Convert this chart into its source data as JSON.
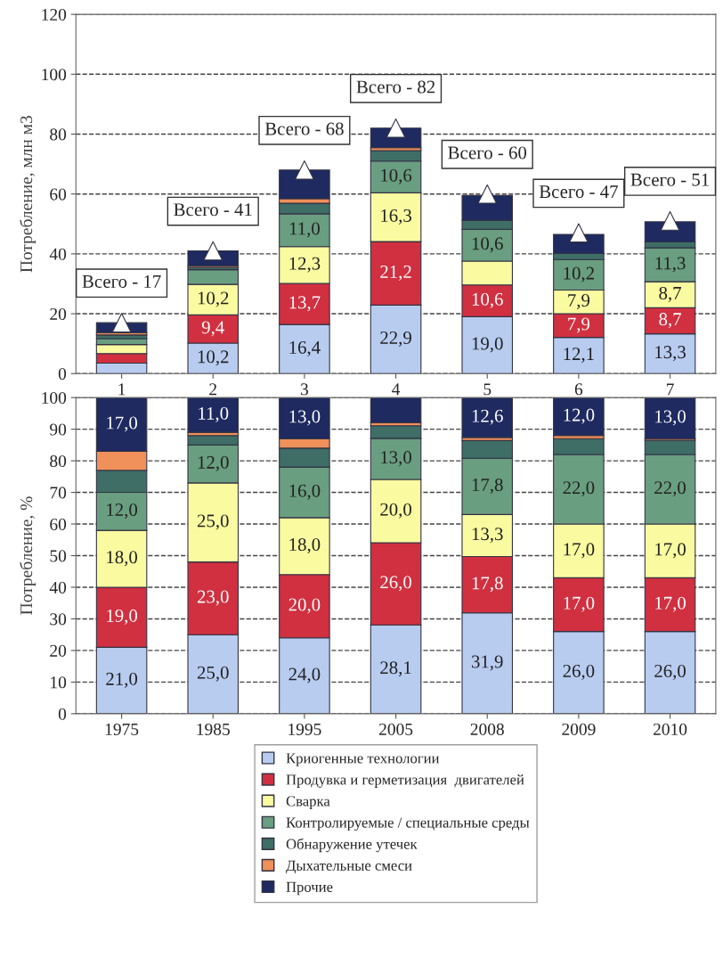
{
  "chart_data": [
    {
      "type": "bar",
      "stacked": true,
      "ylabel": "Потребление, млн м3",
      "categories": [
        "1",
        "2",
        "3",
        "4",
        "5",
        "6",
        "7"
      ],
      "ylim": [
        0,
        120
      ],
      "yticks": [
        0,
        20,
        40,
        60,
        80,
        100,
        120
      ],
      "grid": "y",
      "series": [
        {
          "color": "#b8ccf0",
          "values": [
            3.5,
            10.2,
            16.4,
            22.9,
            19.0,
            12.1,
            13.3
          ],
          "value_labels": [
            null,
            "10,2",
            "16,4",
            "22,9",
            "19,0",
            "12,1",
            "13,3"
          ]
        },
        {
          "color": "#d03040",
          "values": [
            3.2,
            9.4,
            13.7,
            21.2,
            10.6,
            7.9,
            8.7
          ],
          "value_labels": [
            null,
            "9,4",
            "13,7",
            "21,2",
            "10,6",
            "7,9",
            "8,7"
          ]
        },
        {
          "color": "#fafaa0",
          "values": [
            3.0,
            10.2,
            12.3,
            16.3,
            8.0,
            7.9,
            8.7
          ],
          "value_labels": [
            null,
            "10,2",
            "12,3",
            "16,3",
            null,
            "7,9",
            "8,7"
          ]
        },
        {
          "color": "#6a9e80",
          "values": [
            2.0,
            4.9,
            11.0,
            10.6,
            10.6,
            10.2,
            11.3
          ],
          "value_labels": [
            null,
            null,
            "11,0",
            "10,6",
            "10,6",
            "10,2",
            "11,3"
          ]
        },
        {
          "color": "#3e6e66",
          "values": [
            1.2,
            0.8,
            3.5,
            3.5,
            3.0,
            2.0,
            2.0
          ]
        },
        {
          "color": "#f0905a",
          "values": [
            0.8,
            0.5,
            1.5,
            1.0,
            null,
            null,
            null
          ]
        },
        {
          "color": "#1e2a60",
          "values": [
            3.3,
            5.0,
            9.6,
            6.5,
            8.3,
            6.4,
            6.7
          ]
        },
        {
          "type": "scatter",
          "marker": "triangle",
          "color": "#ffffff",
          "x": [
            "1",
            "2",
            "3",
            "4",
            "5",
            "6",
            "7"
          ],
          "values": [
            17,
            41,
            68,
            82,
            60,
            47,
            51
          ]
        }
      ],
      "annotations": [
        {
          "text": "Всего - 17",
          "x": "1",
          "y": 17
        },
        {
          "text": "Всего - 41",
          "x": "2",
          "y": 41
        },
        {
          "text": "Всего - 68",
          "x": "3",
          "y": 68
        },
        {
          "text": "Всего - 82",
          "x": "4",
          "y": 82
        },
        {
          "text": "Всего - 60",
          "x": "5",
          "y": 60
        },
        {
          "text": "Всего - 47",
          "x": "6",
          "y": 47
        },
        {
          "text": "Всего - 51",
          "x": "7",
          "y": 51
        }
      ]
    },
    {
      "type": "bar",
      "stacked": true,
      "ylabel": "Потребление, %",
      "categories": [
        "1975",
        "1985",
        "1995",
        "2005",
        "2008",
        "2009",
        "2010"
      ],
      "ylim": [
        0,
        100
      ],
      "yticks": [
        0,
        10,
        20,
        30,
        40,
        50,
        60,
        70,
        80,
        90,
        100
      ],
      "grid": "y",
      "legend": "bottom",
      "series": [
        {
          "name": "Криогенные технологии",
          "color": "#b8ccf0",
          "values": [
            21.0,
            25.0,
            24.0,
            28.1,
            31.9,
            26.0,
            26.0
          ],
          "value_labels": [
            "21,0",
            "25,0",
            "24,0",
            "28,1",
            "31,9",
            "26,0",
            "26,0"
          ]
        },
        {
          "name": "Продувка и герметизация  двигателей",
          "color": "#d03040",
          "values": [
            19.0,
            23.0,
            20.0,
            26.0,
            17.8,
            17.0,
            17.0
          ],
          "value_labels": [
            "19,0",
            "23,0",
            "20,0",
            "26,0",
            "17,8",
            "17,0",
            "17,0"
          ]
        },
        {
          "name": "Сварка",
          "color": "#fafaa0",
          "values": [
            18.0,
            25.0,
            18.0,
            20.0,
            13.3,
            17.0,
            17.0
          ],
          "value_labels": [
            "18,0",
            "25,0",
            "18,0",
            "20,0",
            "13,3",
            "17,0",
            "17,0"
          ]
        },
        {
          "name": "Контролируемые / специальные среды",
          "color": "#6a9e80",
          "values": [
            12.0,
            12.0,
            16.0,
            13.0,
            17.8,
            22.0,
            22.0
          ],
          "value_labels": [
            "12,0",
            "12,0",
            "16,0",
            "13,0",
            "17,8",
            "22,0",
            "22,0"
          ]
        },
        {
          "name": "Обнаружение утечек",
          "color": "#3e6e66",
          "values": [
            7.0,
            3.0,
            6.0,
            4.0,
            5.6,
            5.0,
            4.5
          ]
        },
        {
          "name": "Дыхательные смеси",
          "color": "#f0905a",
          "values": [
            6.0,
            1.0,
            3.0,
            1.0,
            1.0,
            1.0,
            0.5
          ]
        },
        {
          "name": "Прочие",
          "color": "#1e2a60",
          "values": [
            17.0,
            11.0,
            13.0,
            7.9,
            12.6,
            12.0,
            13.0
          ],
          "value_labels": [
            "17,0",
            "11,0",
            "13,0",
            null,
            "12,6",
            "12,0",
            "13,0"
          ]
        }
      ]
    }
  ]
}
